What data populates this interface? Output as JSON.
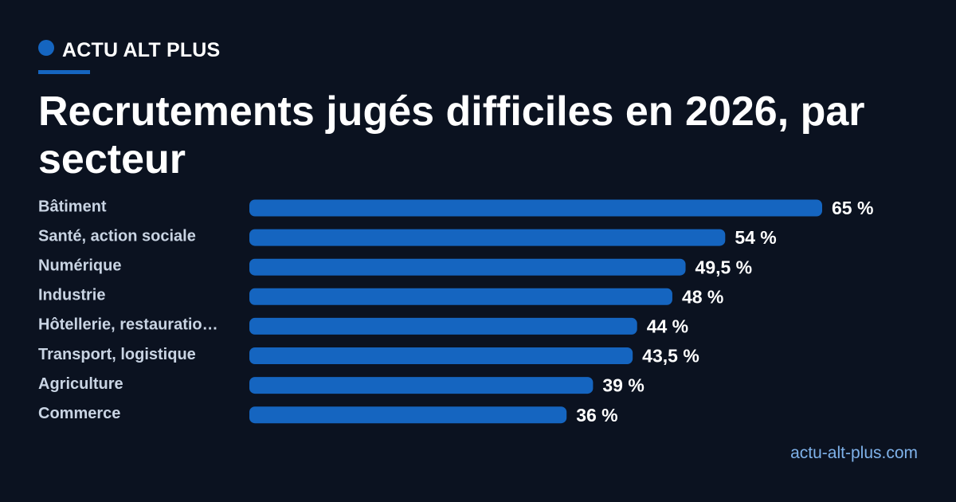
{
  "brand": {
    "name": "ACTU ALT PLUS",
    "accent_color": "#1565c0"
  },
  "footer": {
    "source": "actu-alt-plus.com"
  },
  "chart_data": {
    "type": "bar",
    "orientation": "horizontal",
    "title": "Recrutements jugés difficiles en 2026, par secteur",
    "categories": [
      "Bâtiment",
      "Santé, action sociale",
      "Numérique",
      "Industrie",
      "Hôtellerie, restauratio…",
      "Transport, logistique",
      "Agriculture",
      "Commerce"
    ],
    "values": [
      65,
      54,
      49.5,
      48,
      44,
      43.5,
      39,
      36
    ],
    "value_labels": [
      "65 %",
      "54 %",
      "49,5 %",
      "48 %",
      "44 %",
      "43,5 %",
      "39 %",
      "36 %"
    ],
    "unit": "%",
    "xlim": [
      0,
      65
    ],
    "grid": false,
    "bar_color": "#1565c0"
  }
}
